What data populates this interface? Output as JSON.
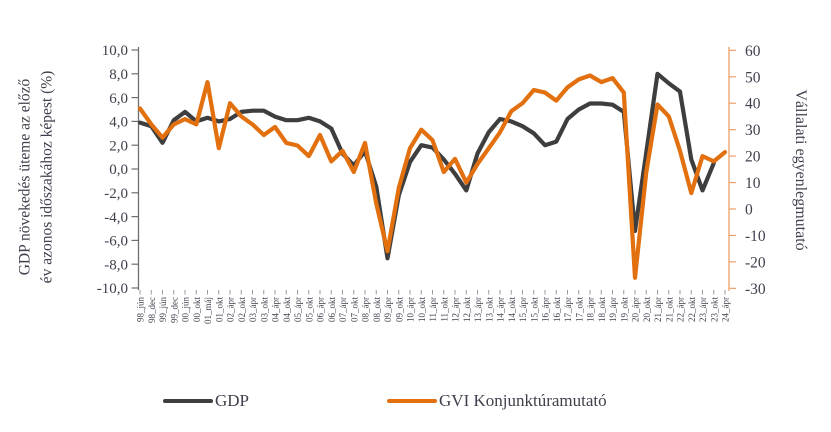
{
  "chart_data": {
    "type": "line",
    "title": "",
    "grid": false,
    "legend_position": "bottom",
    "categories": [
      "98_jún",
      "98_dec",
      "99_jún",
      "99_dec",
      "00_jún",
      "00_okt",
      "01_máj",
      "01_okt",
      "02_ápr",
      "02_okt",
      "03_ápr",
      "03_okt",
      "04_ápr",
      "04_okt",
      "05_ápr",
      "05_okt",
      "06_ápr",
      "06_okt",
      "07_ápr",
      "07_okt",
      "08_ápr",
      "08_okt",
      "09_ápr",
      "09_okt",
      "10_ápr",
      "10_okt",
      "11_ápr",
      "11_okt",
      "12_ápr",
      "12_okt",
      "13_ápr",
      "13_okt",
      "14_ápr",
      "14_okt",
      "15_ápr",
      "15_okt",
      "16_ápr",
      "16_okt",
      "17_ápr",
      "17_okt",
      "18_ápr",
      "18_okt",
      "19_ápr",
      "19_okt",
      "20_ápr",
      "20_okt",
      "21_ápr",
      "21_okt",
      "22_ápr",
      "22_okt",
      "23_ápr",
      "23_okt",
      "24_ápr"
    ],
    "series": [
      {
        "name": "GDP",
        "axis": "left",
        "color": "#3E3E3E",
        "values": [
          3.9,
          3.6,
          2.2,
          4.1,
          4.8,
          4.0,
          4.3,
          4.0,
          4.2,
          4.8,
          4.9,
          4.9,
          4.4,
          4.1,
          4.1,
          4.3,
          4.0,
          3.4,
          1.3,
          0.3,
          1.5,
          -1.5,
          -7.5,
          -2.2,
          0.6,
          2.0,
          1.8,
          0.8,
          -0.4,
          -1.8,
          1.3,
          3.1,
          4.2,
          4.0,
          3.6,
          3.0,
          2.0,
          2.3,
          4.2,
          5.0,
          5.5,
          5.5,
          5.4,
          4.8,
          -5.2,
          1.4,
          8.0,
          7.2,
          6.5,
          0.8,
          -1.8,
          0.5,
          null
        ]
      },
      {
        "name": "GVI Konjunktúramutató",
        "axis": "right",
        "color": "#E2700F",
        "values": [
          38,
          32,
          27,
          32,
          34,
          32,
          48,
          23,
          40,
          35,
          32,
          28,
          31,
          25,
          24,
          20,
          28,
          18,
          22,
          14,
          25,
          2,
          -16,
          8,
          23,
          30,
          26,
          14,
          19,
          10,
          17,
          23,
          29,
          37,
          40,
          45,
          44,
          41,
          46,
          49,
          50.5,
          48,
          49.5,
          44,
          -26,
          14,
          39.5,
          35,
          22,
          6,
          20,
          18,
          21.5
        ]
      }
    ],
    "left_axis": {
      "title_line1": "GDP növekedés üteme az előző",
      "title_line2": "év azonos időszakához képest (%)",
      "min": -10,
      "max": 10,
      "tick_step": 2,
      "tick_labels": [
        "10,0",
        "8,0",
        "6,0",
        "4,0",
        "2,0",
        "0,0",
        "-2,0",
        "-4,0",
        "-6,0",
        "-8,0",
        "-10,0"
      ]
    },
    "right_axis": {
      "title": "Vállalati egyenlegmutató",
      "min": -30,
      "max": 60,
      "tick_step": 10,
      "tick_labels": [
        "60",
        "50",
        "40",
        "30",
        "20",
        "10",
        "0",
        "-10",
        "-20",
        "-30"
      ]
    },
    "legend": [
      {
        "label": "GDP",
        "color": "#3E3E3E"
      },
      {
        "label": "GVI Konjunktúramutató",
        "color": "#E2700F"
      }
    ],
    "colors": {
      "gdp_line": "#3E3E3E",
      "gvi_line": "#E2700F",
      "left_axis_line": "#6E6E6E",
      "right_axis_line": "#EDA068",
      "text": "#3F3F4D"
    }
  }
}
